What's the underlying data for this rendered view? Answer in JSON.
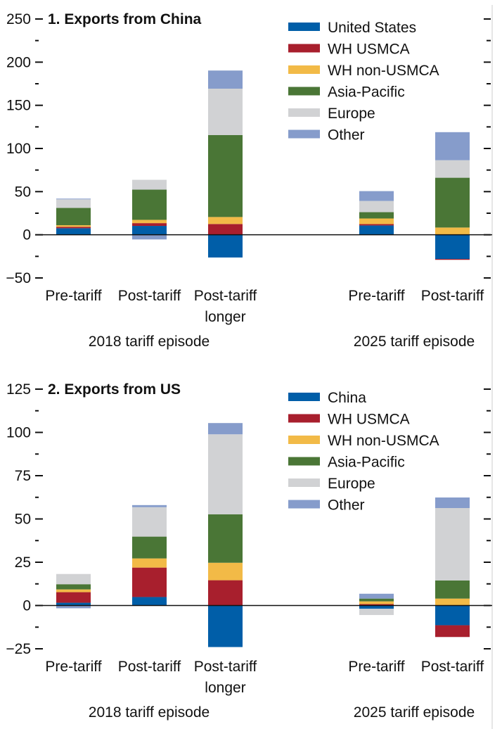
{
  "colors": {
    "blue": "#005EA8",
    "red": "#A81F2D",
    "yellow": "#F2BA47",
    "green": "#4A7636",
    "gray": "#D1D2D4",
    "lightblue": "#869CCB"
  },
  "chart_data": [
    {
      "type": "bar",
      "stacked": true,
      "title": "1. Exports from China",
      "ylim": [
        -50,
        250
      ],
      "yticks": [
        -50,
        0,
        50,
        100,
        150,
        200,
        250
      ],
      "categories": [
        "Pre-tariff",
        "Post-tariff",
        "Post-tariff longer",
        "Pre-tariff",
        "Post-tariff"
      ],
      "category_lines": [
        [
          "Pre-tariff"
        ],
        [
          "Post-tariff"
        ],
        [
          "Post-tariff",
          "longer"
        ],
        [
          "Pre-tariff"
        ],
        [
          "Post-tariff"
        ]
      ],
      "groups": [
        {
          "label": "2018 tariff episode",
          "categories": [
            0,
            1,
            2
          ]
        },
        {
          "label": "2025 tariff episode",
          "categories": [
            3,
            4
          ]
        }
      ],
      "legend_position": "top-right",
      "series": [
        {
          "name": "United States",
          "color": "blue",
          "values": [
            7.6,
            10.3,
            -26.3,
            10.8,
            -28
          ]
        },
        {
          "name": "WH USMCA",
          "color": "red",
          "values": [
            1.6,
            3.2,
            12.5,
            1.6,
            -1
          ]
        },
        {
          "name": "WH non-USMCA",
          "color": "yellow",
          "values": [
            1.9,
            3.8,
            8.1,
            6.5,
            8.4
          ]
        },
        {
          "name": "Asia-Pacific",
          "color": "green",
          "values": [
            20,
            35,
            95,
            7.3,
            57.7
          ]
        },
        {
          "name": "Europe",
          "color": "gray",
          "values": [
            10,
            11.4,
            53.7,
            13,
            20.3
          ]
        },
        {
          "name": "Other",
          "color": "lightblue",
          "values": [
            0.8,
            -5.4,
            21,
            11.4,
            32.5
          ]
        }
      ]
    },
    {
      "type": "bar",
      "stacked": true,
      "title": "2. Exports from US",
      "ylim": [
        -25,
        125
      ],
      "yticks": [
        -25,
        0,
        25,
        50,
        75,
        100,
        125
      ],
      "categories": [
        "Pre-tariff",
        "Post-tariff",
        "Post-tariff longer",
        "Pre-tariff",
        "Post-tariff"
      ],
      "category_lines": [
        [
          "Pre-tariff"
        ],
        [
          "Post-tariff"
        ],
        [
          "Post-tariff",
          "longer"
        ],
        [
          "Pre-tariff"
        ],
        [
          "Post-tariff"
        ]
      ],
      "groups": [
        {
          "label": "2018 tariff episode",
          "categories": [
            0,
            1,
            2
          ]
        },
        {
          "label": "2025 tariff episode",
          "categories": [
            3,
            4
          ]
        }
      ],
      "legend_position": "top-right",
      "series": [
        {
          "name": "China",
          "color": "blue",
          "values": [
            1.6,
            4.9,
            -24,
            -1.9,
            -11.4
          ]
        },
        {
          "name": "WH USMCA",
          "color": "red",
          "values": [
            6.1,
            17,
            14.6,
            0.8,
            -6.8
          ]
        },
        {
          "name": "WH non-USMCA",
          "color": "yellow",
          "values": [
            1.6,
            5.3,
            10.1,
            1.6,
            4
          ]
        },
        {
          "name": "Asia-Pacific",
          "color": "green",
          "values": [
            3,
            12.6,
            28,
            1.6,
            10.5
          ]
        },
        {
          "name": "Europe",
          "color": "gray",
          "values": [
            5.9,
            17,
            46.2,
            -3.6,
            41.8
          ]
        },
        {
          "name": "Other",
          "color": "lightblue",
          "values": [
            -1.6,
            1.2,
            6.5,
            2.8,
            6.1
          ]
        }
      ]
    }
  ]
}
